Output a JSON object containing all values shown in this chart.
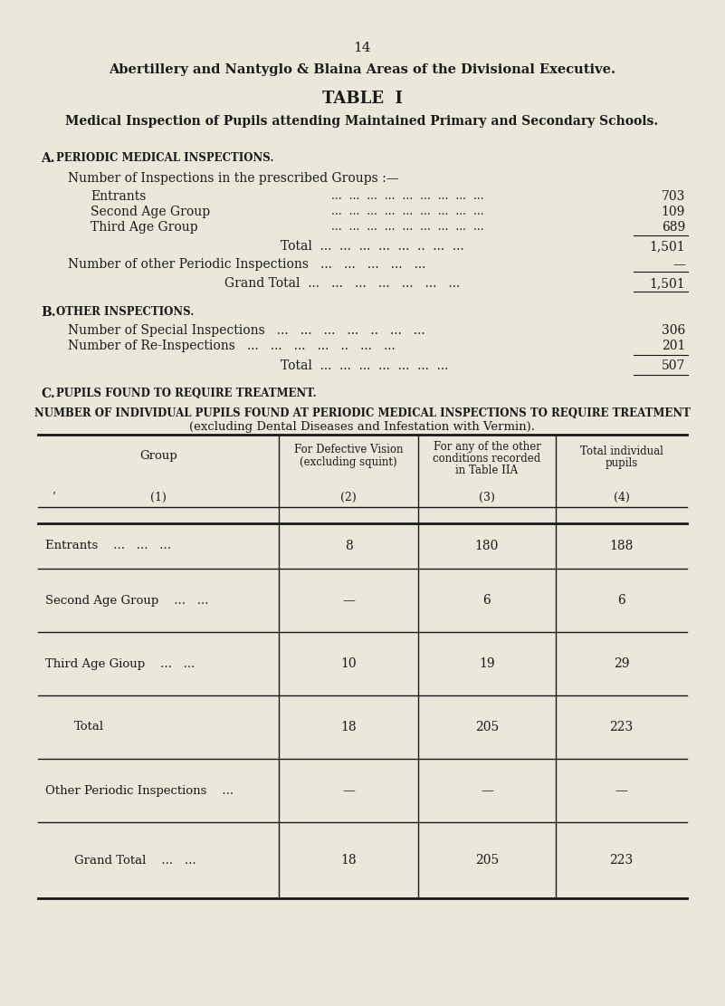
{
  "bg_color": "#eae8da",
  "page_num": "14",
  "title1": "Abertillery and Nantyglo & Blaina Areas of the Divisional Executive.",
  "title2": "TABLE  I",
  "title3": "Medical Inspection of Pupils attending Maintained Primary and Secondary Schools.",
  "section_A_head_a": "A.",
  "section_A_head_b": "Periodic Medical Inspections.",
  "section_A_sub": "Number of Inspections in the prescribed Groups :—",
  "A_rows": [
    {
      "label": "Entrants",
      "value": "703"
    },
    {
      "label": "Second Age Group",
      "value": "109"
    },
    {
      "label": "Third Age Group",
      "value": "689"
    }
  ],
  "A_total_label": "Total",
  "A_total_value": "1,501",
  "A_other_label": "Number of other Periodic Inspections",
  "A_other_value": "—",
  "A_grand_label": "Grand Total",
  "A_grand_value": "1,501",
  "section_B_head_a": "B.",
  "section_B_head_b": "Other Inspections.",
  "B_rows": [
    {
      "label": "Number of Special Inspections",
      "value": "306"
    },
    {
      "label": "Number of Re-Inspections",
      "value": "201"
    }
  ],
  "B_total_label": "Total",
  "B_total_value": "507",
  "section_C_head_a": "C.",
  "section_C_head_b": "Pupils Found to Require Treatment.",
  "C_subtitle1": "Number of Individual Pupils Found at Periodic Medical Inspections to Require Treatment",
  "C_subtitle2": "(excluding Dental Diseases and Infestation with Vermin).",
  "table_col1": "Group",
  "table_col1_sub": "(1)",
  "table_col2a": "For Defective Vision",
  "table_col2b": "(excluding squint)",
  "table_col2_sub": "(2)",
  "table_col3a": "For any of the other",
  "table_col3b": "conditions recorded",
  "table_col3c": "in Table IIA",
  "table_col3_sub": "(3)",
  "table_col4a": "Total individual",
  "table_col4b": "pupils",
  "table_col4_sub": "(4)",
  "table_rows": [
    {
      "group": "Entrants",
      "dots": "...   ...   ...",
      "col2": "8",
      "col3": "180",
      "col4": "188",
      "bold_border": false
    },
    {
      "group": "Second Age Group",
      "dots": "...   ...",
      "col2": "—",
      "col3": "6",
      "col4": "6",
      "bold_border": false
    },
    {
      "group": "Third Age Gioup",
      "dots": "...   ...",
      "col2": "10",
      "col3": "19",
      "col4": "29",
      "bold_border": false
    },
    {
      "group": "Total",
      "dots": "",
      "col2": "18",
      "col3": "205",
      "col4": "223",
      "bold_border": false
    },
    {
      "group": "Other Periodic Inspections",
      "dots": "...",
      "col2": "—",
      "col3": "—",
      "col4": "—",
      "bold_border": false
    },
    {
      "group": "Grand Total",
      "dots": "...   ...",
      "col2": "18",
      "col3": "205",
      "col4": "223",
      "bold_border": false
    }
  ],
  "dots_text": "...   ...   ...   ...   ...   ...   ...   ...   ..."
}
